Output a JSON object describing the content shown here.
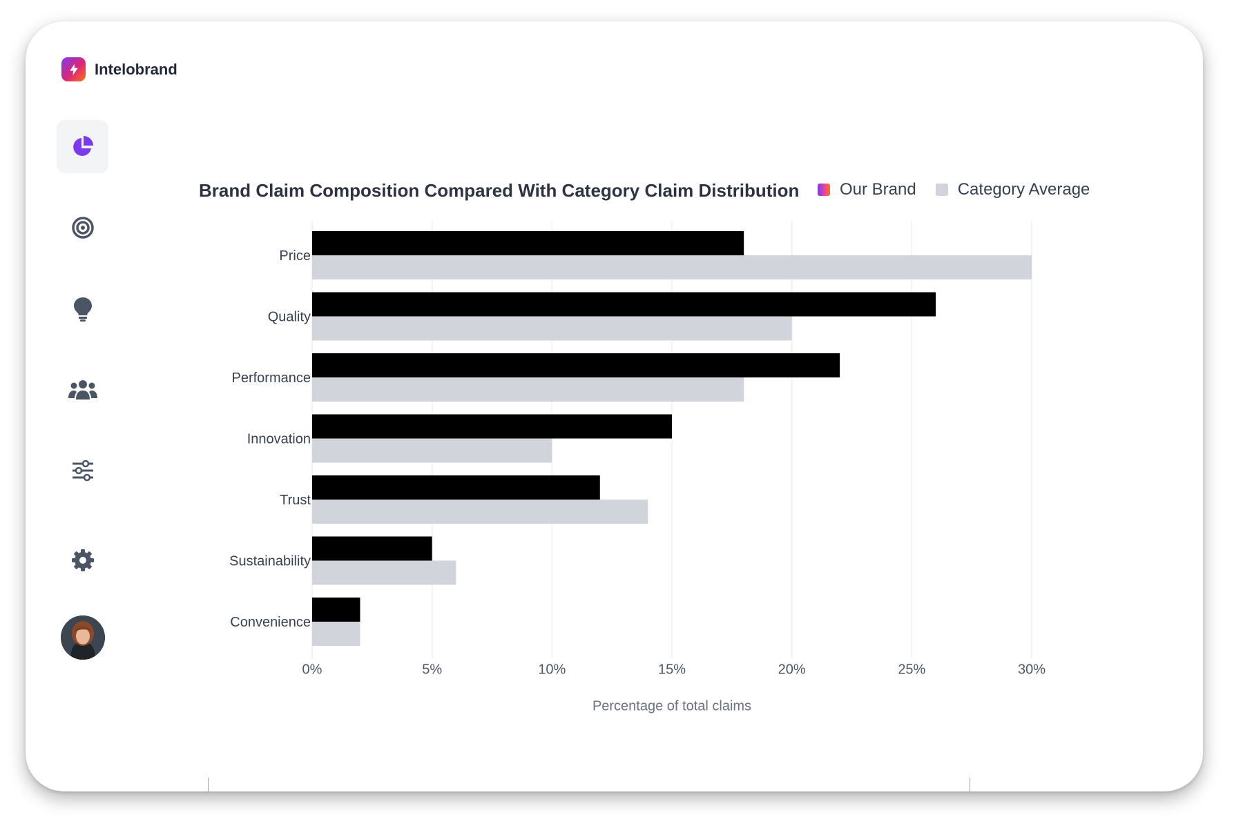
{
  "app": {
    "name": "Intelobrand"
  },
  "sidebar": {
    "items": [
      {
        "name": "dashboard",
        "icon": "pie-chart-icon",
        "active": true
      },
      {
        "name": "targets",
        "icon": "target-icon",
        "active": false
      },
      {
        "name": "insights",
        "icon": "lightbulb-icon",
        "active": false
      },
      {
        "name": "audience",
        "icon": "users-icon",
        "active": false
      },
      {
        "name": "filters",
        "icon": "sliders-icon",
        "active": false
      },
      {
        "name": "settings",
        "icon": "gear-icon",
        "active": false
      }
    ],
    "avatar_icon": "user-avatar"
  },
  "colors": {
    "accent": "#7c3aed",
    "our_brand_bar": "#000000",
    "category_bar": "#d1d5db",
    "legend_gradient_start": "#7c3aed",
    "legend_gradient_end": "#f97316",
    "nav_icon": "#4b5563"
  },
  "chart_data": {
    "type": "bar",
    "orientation": "horizontal",
    "title": "Brand Claim Composition Compared With Category Claim Distribution",
    "xlabel": "Percentage of total claims",
    "ylabel": "",
    "categories": [
      "Price",
      "Quality",
      "Performance",
      "Innovation",
      "Trust",
      "Sustainability",
      "Convenience"
    ],
    "series": [
      {
        "name": "Our Brand",
        "values": [
          18,
          26,
          22,
          15,
          12,
          5,
          2
        ]
      },
      {
        "name": "Category Average",
        "values": [
          30,
          20,
          18,
          10,
          14,
          6,
          2
        ]
      }
    ],
    "xlim": [
      0,
      30
    ],
    "xticks": [
      0,
      5,
      10,
      15,
      20,
      25,
      30
    ],
    "xtick_labels": [
      "0%",
      "5%",
      "10%",
      "15%",
      "20%",
      "25%",
      "30%"
    ],
    "grid": true,
    "legend_position": "top-right"
  }
}
